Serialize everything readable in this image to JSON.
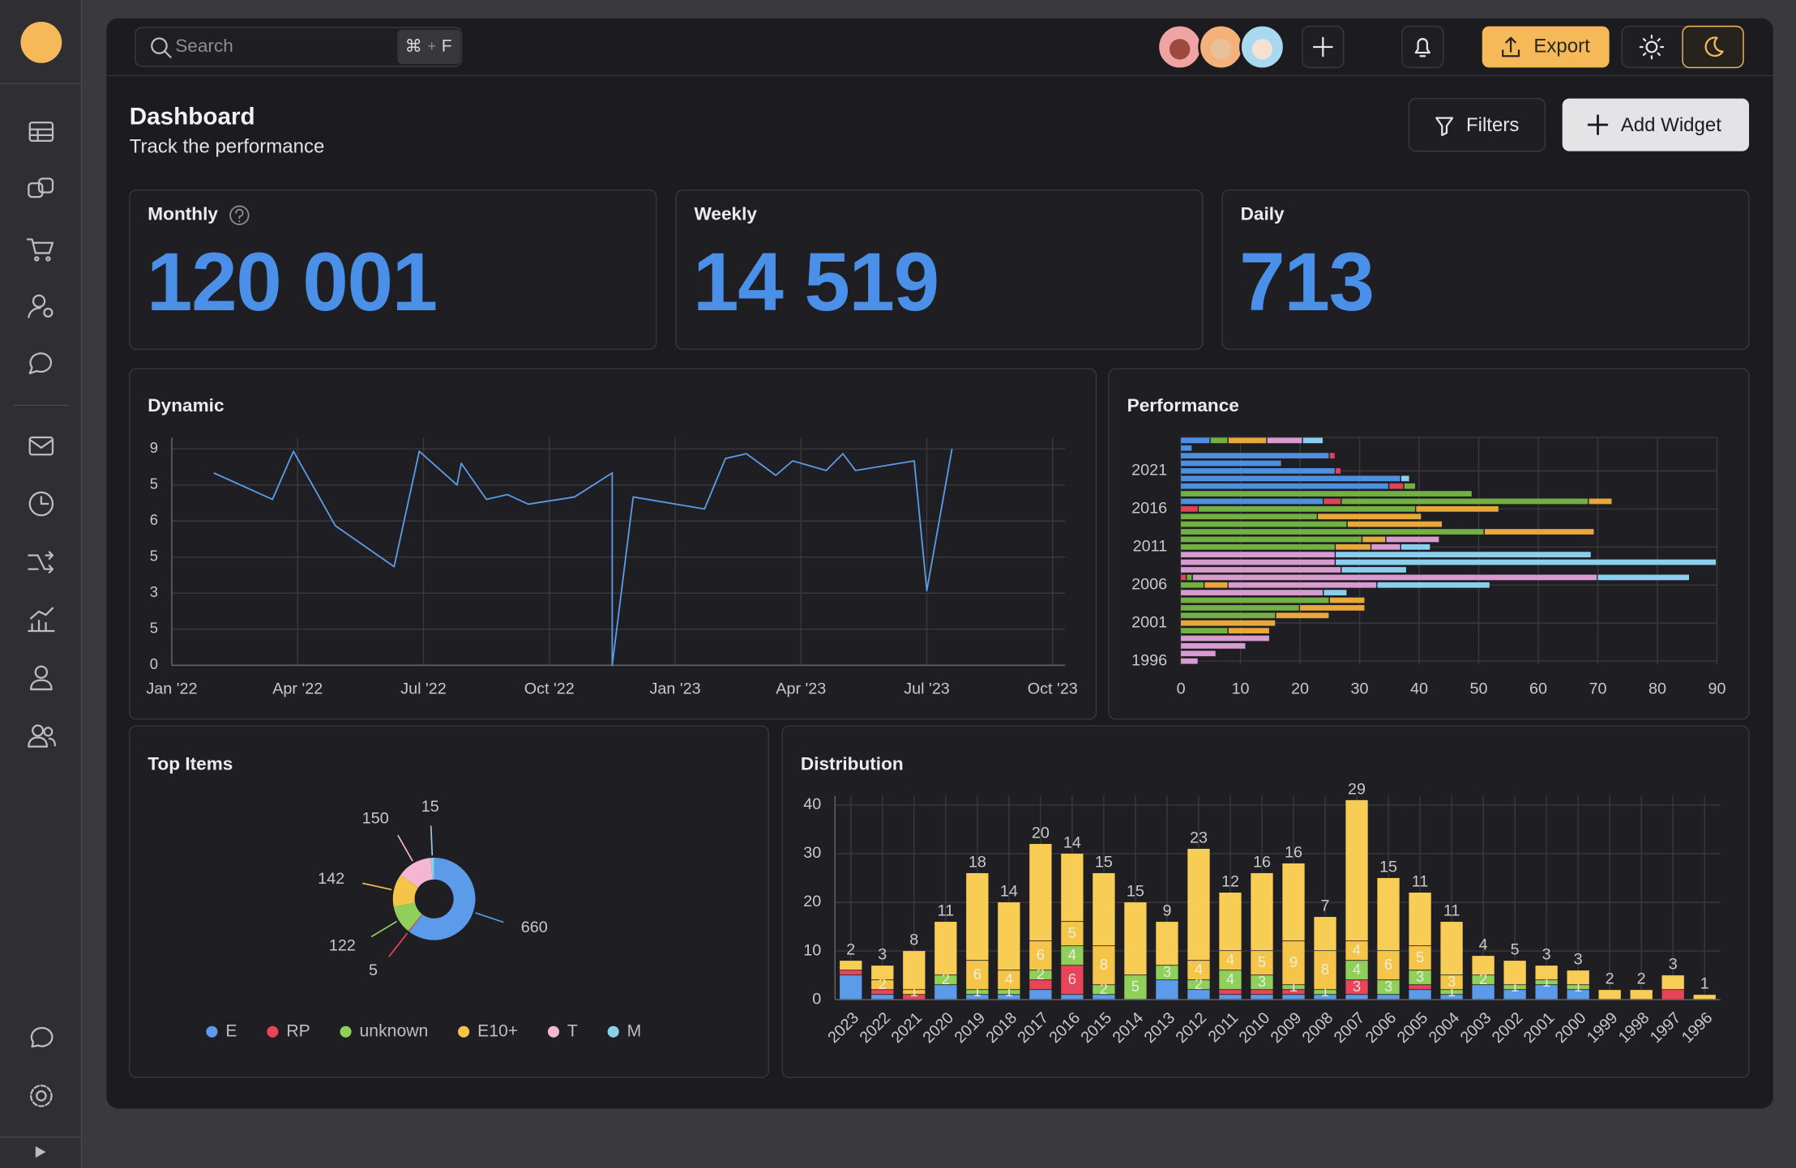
{
  "search": {
    "placeholder": "Search",
    "shortcut": [
      "⌘",
      "+",
      "F"
    ]
  },
  "actions": {
    "export": "Export"
  },
  "header": {
    "title": "Dashboard",
    "subtitle": "Track the performance",
    "filters": "Filters",
    "add_widget": "Add Widget"
  },
  "kpis": [
    {
      "label": "Monthly",
      "value": "120 001"
    },
    {
      "label": "Weekly",
      "value": "14 519"
    },
    {
      "label": "Daily",
      "value": "713"
    }
  ],
  "chart_data": [
    {
      "type": "line",
      "title": "Dynamic",
      "color": "#5a9be8",
      "grid": true,
      "x": [
        1.0,
        2.4,
        2.9,
        3.9,
        5.3,
        5.9,
        6.8,
        6.9,
        7.5,
        8.0,
        8.5,
        9.6,
        10.5,
        10.5,
        11.0,
        12.7,
        13.2,
        13.7,
        14.4,
        14.8,
        15.6,
        16.0,
        16.3,
        17.7,
        18.0,
        18.6
      ],
      "values": [
        8.0,
        6.9,
        8.9,
        5.8,
        4.1,
        8.9,
        7.5,
        8.4,
        6.9,
        7.1,
        6.7,
        7.0,
        8.0,
        0,
        7.0,
        6.5,
        8.6,
        8.8,
        7.9,
        8.5,
        8.1,
        8.8,
        8.1,
        8.5,
        3.1,
        9.0
      ],
      "xlim": [
        0,
        21.3
      ],
      "xticks": [
        {
          "value": 0,
          "label": "Jan '22"
        },
        {
          "value": 3,
          "label": "Apr '22"
        },
        {
          "value": 6,
          "label": "Jul '22"
        },
        {
          "value": 9,
          "label": "Oct '22"
        },
        {
          "value": 12,
          "label": "Jan '23"
        },
        {
          "value": 15,
          "label": "Apr '23"
        },
        {
          "value": 18,
          "label": "Jul '23"
        },
        {
          "value": 21,
          "label": "Oct '23"
        }
      ],
      "ylim": [
        0,
        9
      ],
      "yticks": [
        0,
        {
          "value": 1.5,
          "label": "5"
        },
        3,
        {
          "value": 4.5,
          "label": "5"
        },
        6,
        {
          "value": 7.5,
          "label": "5"
        },
        9
      ]
    },
    {
      "type": "barh",
      "title": "Performance",
      "stacked": true,
      "grid": true,
      "categories": [
        null,
        null,
        null,
        null,
        "2021",
        null,
        null,
        null,
        null,
        "2016",
        null,
        null,
        null,
        null,
        "2011",
        null,
        null,
        null,
        null,
        "2006",
        null,
        null,
        null,
        null,
        "2001",
        null,
        null,
        null,
        null,
        "1996"
      ],
      "series": [
        {
          "name": "E",
          "color": "#4d8fe0",
          "values": [
            5,
            2,
            25,
            17,
            26,
            37,
            35,
            0,
            24,
            0,
            0,
            0,
            0,
            0,
            0,
            0,
            0,
            0,
            0,
            0,
            0,
            0,
            0,
            0,
            0,
            0,
            0,
            0,
            0,
            0
          ]
        },
        {
          "name": "RP",
          "color": "#e04357",
          "values": [
            0,
            0,
            1,
            0,
            1,
            0,
            2.5,
            0,
            3,
            3,
            0,
            0,
            0,
            0,
            0,
            0,
            0,
            0,
            1,
            0,
            0,
            0,
            0,
            0,
            0,
            0,
            0,
            0,
            0,
            0
          ]
        },
        {
          "name": "unknown",
          "color": "#72b043",
          "values": [
            3,
            0,
            0,
            0,
            0,
            0,
            2,
            49,
            41.5,
            36.5,
            23,
            28,
            51,
            30.5,
            26,
            0,
            0,
            0,
            1,
            4,
            0,
            25,
            20,
            16,
            0,
            8,
            0,
            0,
            0,
            0
          ]
        },
        {
          "name": "E10+",
          "color": "#e9a93a",
          "values": [
            6.5,
            0,
            0,
            0,
            0,
            0,
            0,
            0,
            4,
            14,
            17.5,
            16,
            18.5,
            4,
            6,
            0,
            0,
            0,
            0,
            4,
            0,
            6,
            11,
            9,
            16,
            7,
            0,
            0,
            0,
            0
          ]
        },
        {
          "name": "T",
          "color": "#d89bd0",
          "values": [
            6,
            0,
            0,
            0,
            0,
            0,
            0,
            0,
            0,
            0,
            0,
            0,
            0,
            9,
            5,
            26,
            26,
            27,
            68,
            25,
            24,
            0,
            0,
            0,
            0,
            0,
            15,
            11,
            6,
            3
          ]
        },
        {
          "name": "M",
          "color": "#8ad0ee",
          "values": [
            3.5,
            0,
            0,
            0,
            0,
            1.5,
            0,
            0,
            0,
            0,
            0,
            0,
            0,
            0,
            5,
            43,
            64,
            11,
            15.5,
            19,
            4,
            0,
            0,
            0,
            0,
            0,
            0,
            0,
            0,
            0
          ]
        }
      ],
      "xlim": [
        0,
        90
      ],
      "xticks": [
        0,
        10,
        20,
        30,
        40,
        50,
        60,
        70,
        80,
        90
      ]
    },
    {
      "type": "pie",
      "title": "Top Items",
      "donut": true,
      "legend": "bottom",
      "categories": [
        "E",
        "RP",
        "unknown",
        "E10+",
        "T",
        "M"
      ],
      "values": [
        660,
        5,
        122,
        142,
        150,
        15
      ],
      "colors": [
        "#5b9bea",
        "#e8445a",
        "#8fcf5a",
        "#f5c54a",
        "#f4b6d2",
        "#8ccfea"
      ]
    },
    {
      "type": "bar",
      "title": "Distribution",
      "stacked": true,
      "grid": true,
      "categories": [
        "2023",
        "2022",
        "2021",
        "2020",
        "2019",
        "2018",
        "2017",
        "2016",
        "2015",
        "2014",
        "2013",
        "2012",
        "2011",
        "2010",
        "2009",
        "2008",
        "2007",
        "2006",
        "2005",
        "2004",
        "2003",
        "2002",
        "2001",
        "2000",
        "1999",
        "1998",
        "1997",
        "1996"
      ],
      "series": [
        {
          "name": "E",
          "color": "#5b9bea",
          "values": [
            5,
            1,
            0,
            3,
            1,
            1,
            2,
            1,
            1,
            0,
            4,
            2,
            1,
            1,
            1,
            1,
            1,
            1,
            2,
            1,
            3,
            2,
            3,
            2,
            0,
            0,
            0,
            0
          ]
        },
        {
          "name": "RP",
          "color": "#e8445a",
          "values": [
            1,
            1,
            1,
            0,
            0,
            0,
            2,
            6,
            0,
            0,
            0,
            0,
            1,
            1,
            1,
            0,
            3,
            0,
            1,
            0,
            0,
            0,
            0,
            0,
            0,
            0,
            2,
            0
          ],
          "value_labels": [
            null,
            null,
            null,
            null,
            null,
            null,
            null,
            "6",
            null,
            null,
            null,
            null,
            null,
            null,
            null,
            null,
            "3",
            null,
            null,
            null,
            null,
            null,
            null,
            null,
            null,
            null,
            null,
            null
          ]
        },
        {
          "name": "unknown",
          "color": "#8fcf5a",
          "values": [
            0,
            0,
            0,
            2,
            1,
            1,
            2,
            4,
            2,
            5,
            3,
            2,
            4,
            3,
            1,
            1,
            4,
            3,
            3,
            1,
            2,
            1,
            1,
            1,
            0,
            0,
            0,
            0
          ],
          "value_labels": [
            null,
            null,
            null,
            "2",
            "1",
            "1",
            "2",
            "4",
            "2",
            "5",
            "3",
            "2",
            "4",
            "3",
            "1",
            "1",
            "4",
            "3",
            "3",
            "1",
            "2",
            "1",
            "1",
            "1",
            null,
            null,
            null,
            null
          ]
        },
        {
          "name": "E10+",
          "color": "#f5c54a",
          "values": [
            0,
            2,
            1,
            0,
            6,
            4,
            6,
            5,
            8,
            0,
            0,
            4,
            4,
            5,
            9,
            8,
            4,
            6,
            5,
            3,
            0,
            0,
            0,
            0,
            0,
            0,
            0,
            0
          ],
          "value_labels": [
            null,
            "2",
            "1",
            null,
            "6",
            "4",
            "6",
            "5",
            "8",
            null,
            null,
            "4",
            "4",
            "5",
            "9",
            "8",
            "4",
            "6",
            "5",
            "3",
            null,
            null,
            null,
            null,
            null,
            null,
            null,
            null
          ]
        },
        {
          "name": "T",
          "color": "#f7cd55",
          "values": [
            2,
            3,
            8,
            11,
            18,
            14,
            20,
            14,
            15,
            15,
            9,
            23,
            12,
            16,
            16,
            7,
            29,
            15,
            11,
            11,
            4,
            5,
            3,
            3,
            2,
            2,
            3,
            1
          ],
          "value_labels": [
            "2",
            "3",
            "8",
            "11",
            "18",
            "14",
            "20",
            "14",
            "15",
            "15",
            "9",
            "23",
            "12",
            "16",
            "16",
            "7",
            "29",
            "15",
            "11",
            "11",
            "4",
            "5",
            "3",
            "3",
            "2",
            "2",
            "3",
            "1"
          ]
        }
      ],
      "ylim": [
        0,
        40
      ],
      "yticks": [
        0,
        10,
        20,
        30,
        40
      ]
    }
  ]
}
